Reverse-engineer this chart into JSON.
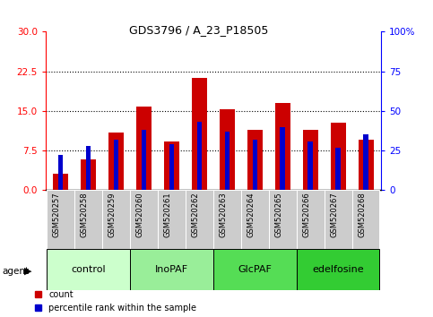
{
  "title": "GDS3796 / A_23_P18505",
  "samples": [
    "GSM520257",
    "GSM520258",
    "GSM520259",
    "GSM520260",
    "GSM520261",
    "GSM520262",
    "GSM520263",
    "GSM520264",
    "GSM520265",
    "GSM520266",
    "GSM520267",
    "GSM520268"
  ],
  "red_values": [
    3.2,
    5.8,
    11.0,
    15.8,
    9.3,
    21.2,
    15.4,
    11.5,
    16.5,
    11.5,
    12.8,
    9.5
  ],
  "blue_pct": [
    22,
    28,
    32,
    38,
    29,
    43,
    37,
    32,
    40,
    31,
    27,
    35
  ],
  "groups": [
    {
      "label": "control",
      "start": 0,
      "end": 3,
      "color": "#ccffcc"
    },
    {
      "label": "InoPAF",
      "start": 3,
      "end": 6,
      "color": "#99ee99"
    },
    {
      "label": "GlcPAF",
      "start": 6,
      "end": 9,
      "color": "#55dd55"
    },
    {
      "label": "edelfosine",
      "start": 9,
      "end": 12,
      "color": "#33cc33"
    }
  ],
  "ylim_left": [
    0,
    30
  ],
  "ylim_right": [
    0,
    100
  ],
  "yticks_left": [
    0,
    7.5,
    15,
    22.5,
    30
  ],
  "yticks_right": [
    0,
    25,
    50,
    75,
    100
  ],
  "bar_width": 0.55,
  "red_color": "#cc0000",
  "blue_color": "#0000cc",
  "legend_red": "count",
  "legend_blue": "percentile rank within the sample",
  "fig_bg": "#ffffff"
}
